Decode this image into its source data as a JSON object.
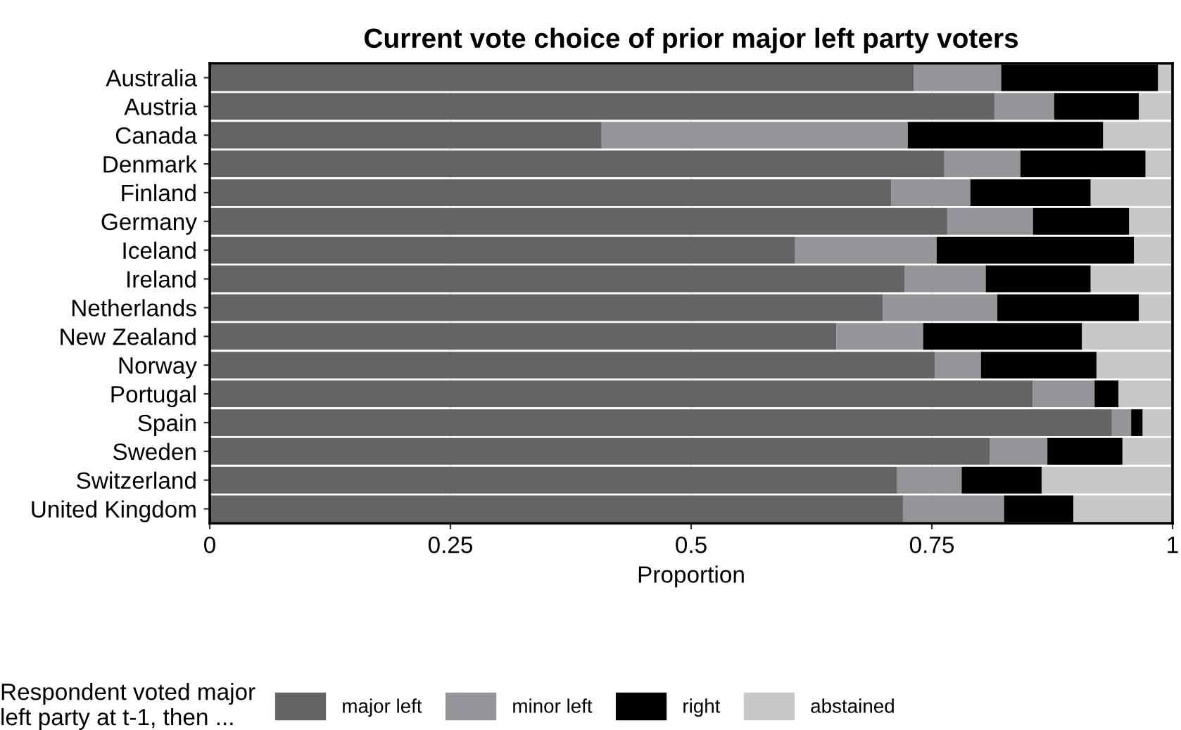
{
  "chart_data": {
    "type": "bar",
    "orientation": "horizontal",
    "stacked": true,
    "title": "Current vote choice of prior major left party voters",
    "xlabel": "Proportion",
    "legend_title": "Respondent voted major\nleft party at t-1, then ...",
    "legend": "bottom",
    "grid": "x",
    "categories": [
      "Australia",
      "Austria",
      "Canada",
      "Denmark",
      "Finland",
      "Germany",
      "Iceland",
      "Ireland",
      "Netherlands",
      "New Zealand",
      "Norway",
      "Portugal",
      "Spain",
      "Sweden",
      "Switzerland",
      "United Kingdom"
    ],
    "xlim": [
      0,
      1
    ],
    "xticks": [
      0,
      0.25,
      0.5,
      0.75,
      1
    ],
    "series": [
      {
        "name": "major left",
        "color": "#636466",
        "values": [
          0.731,
          0.815,
          0.407,
          0.763,
          0.708,
          0.766,
          0.608,
          0.722,
          0.699,
          0.651,
          0.753,
          0.855,
          0.937,
          0.81,
          0.714,
          0.72
        ]
      },
      {
        "name": "minor left",
        "color": "#949598",
        "values": [
          0.091,
          0.062,
          0.318,
          0.079,
          0.082,
          0.089,
          0.147,
          0.084,
          0.119,
          0.09,
          0.048,
          0.064,
          0.02,
          0.06,
          0.067,
          0.105
        ]
      },
      {
        "name": "right",
        "color": "#000000",
        "values": [
          0.163,
          0.088,
          0.203,
          0.13,
          0.125,
          0.1,
          0.205,
          0.109,
          0.147,
          0.165,
          0.12,
          0.025,
          0.012,
          0.078,
          0.083,
          0.072
        ]
      },
      {
        "name": "abstained",
        "color": "#c7c8ca",
        "values": [
          0.015,
          0.035,
          0.072,
          0.028,
          0.085,
          0.045,
          0.04,
          0.085,
          0.035,
          0.094,
          0.079,
          0.056,
          0.031,
          0.052,
          0.136,
          0.103
        ]
      }
    ]
  }
}
